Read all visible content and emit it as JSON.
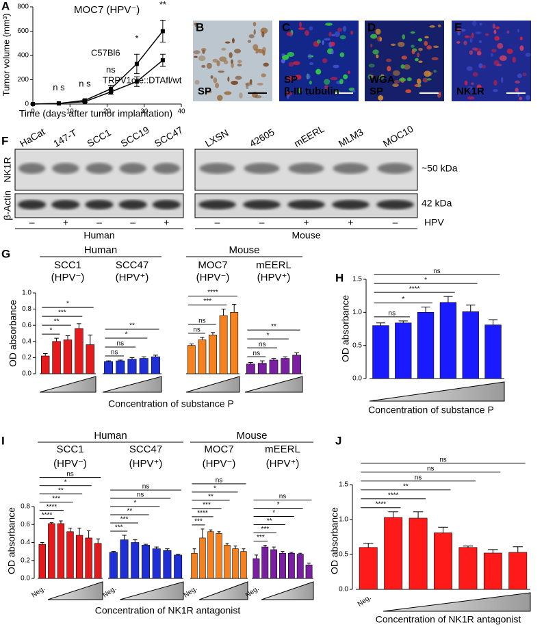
{
  "chart_data": [
    {
      "type": "line",
      "panel": "A",
      "title": "MOC7 (HPV⁻)",
      "x_label": "Time (days after tumor implantation)",
      "y_label": "Tumor volume (mm³)",
      "x": [
        0,
        7,
        14,
        21,
        28,
        35
      ],
      "xlim": [
        0,
        40
      ],
      "xticks": [
        0,
        10,
        20,
        30,
        40
      ],
      "ylim": [
        0,
        800
      ],
      "yticks": [
        0,
        200,
        400,
        600,
        800
      ],
      "series": [
        {
          "name": "C57Bl6",
          "color": "#000000",
          "values": [
            0,
            5,
            30,
            125,
            330,
            600
          ],
          "errors": [
            0,
            3,
            8,
            30,
            80,
            90
          ]
        },
        {
          "name": "TRPV1cre::DTAfl/wt",
          "color": "#000000",
          "values": [
            0,
            5,
            20,
            100,
            185,
            360
          ],
          "errors": [
            0,
            3,
            6,
            20,
            40,
            50
          ]
        }
      ],
      "significance": [
        null,
        "n s",
        "n s",
        "ns",
        "*",
        "**"
      ]
    },
    {
      "type": "bar",
      "panel": "G",
      "x_label": "Concentration of substance P",
      "y_label": "OD absorbance",
      "group_labels": [
        "Human",
        "Mouse"
      ],
      "ylim": [
        0,
        1
      ],
      "yticks": [
        {
          "value": 0,
          "label": "0.0"
        },
        0.2,
        0.4,
        0.6,
        0.8,
        {
          "value": 1,
          "label": "1.0"
        }
      ],
      "series": [
        {
          "name": "SCC1",
          "subtitle": "(HPV⁻)",
          "color": "#e41a1c",
          "values": [
            0.22,
            0.4,
            0.42,
            0.56,
            0.36
          ],
          "errors": [
            0.03,
            0.04,
            0.05,
            0.06,
            0.12
          ],
          "significance": [
            null,
            "*",
            "**",
            "***",
            "*"
          ]
        },
        {
          "name": "SCC47",
          "subtitle": "(HPV⁺)",
          "color": "#1f2fd6",
          "values": [
            0.15,
            0.16,
            0.18,
            0.19,
            0.21
          ],
          "errors": [
            0.01,
            0.01,
            0.02,
            0.02,
            0.02
          ],
          "significance": [
            null,
            "ns",
            "ns",
            "*",
            "**"
          ]
        },
        {
          "name": "MOC7",
          "subtitle": "(HPV⁻)",
          "color": "#f5821f",
          "values": [
            0.35,
            0.42,
            0.48,
            0.72,
            0.76
          ],
          "errors": [
            0.02,
            0.03,
            0.03,
            0.08,
            0.1
          ],
          "significance": [
            null,
            "ns",
            "ns",
            "***",
            "****"
          ]
        },
        {
          "name": "mEERL",
          "subtitle": "(HPV⁺)",
          "color": "#7b1fa2",
          "values": [
            0.12,
            0.13,
            0.17,
            0.19,
            0.23
          ],
          "errors": [
            0.02,
            0.03,
            0.02,
            0.02,
            0.03
          ],
          "significance": [
            null,
            "ns",
            "ns",
            "*",
            "**"
          ]
        }
      ]
    },
    {
      "type": "bar",
      "panel": "H",
      "x_label": "Concentration of substance P",
      "y_label": "OD absorbance",
      "ylim": [
        0,
        1.5
      ],
      "yticks": [
        {
          "value": 0,
          "label": "0.0"
        },
        0.5,
        {
          "value": 1,
          "label": "1.0"
        },
        1.5
      ],
      "series": [
        {
          "color": "#1a1aff",
          "values": [
            0.8,
            0.84,
            1.0,
            1.15,
            1.01,
            0.81
          ],
          "errors": [
            0.04,
            0.03,
            0.08,
            0.09,
            0.1,
            0.08
          ],
          "significance": [
            null,
            "ns",
            "*",
            "****",
            "*",
            "ns"
          ]
        }
      ]
    },
    {
      "type": "bar",
      "panel": "I",
      "x_label": "Concentration of NK1R antagonist",
      "y_label": "OD absorbance",
      "group_labels": [
        "Human",
        "Mouse"
      ],
      "categories": [
        "Neg.",
        null,
        null,
        null,
        null,
        null,
        null
      ],
      "ylim": [
        0,
        0.8
      ],
      "yticks": [
        {
          "value": 0,
          "label": "0.0"
        },
        0.2,
        0.4,
        0.6,
        0.8
      ],
      "series": [
        {
          "name": "SCC1",
          "subtitle": "(HPV⁻)",
          "color": "#e41a1c",
          "values": [
            0.38,
            0.61,
            0.61,
            0.52,
            0.48,
            0.45,
            0.39
          ],
          "errors": [
            0.02,
            0.01,
            0.03,
            0.04,
            0.08,
            0.08,
            0.05
          ],
          "significance": [
            null,
            "****",
            "****",
            "***",
            "**",
            "*",
            "ns"
          ]
        },
        {
          "name": "SCC47",
          "subtitle": "(HPV⁺)",
          "color": "#1f2fd6",
          "values": [
            0.29,
            0.43,
            0.4,
            0.37,
            0.33,
            0.31,
            0.26
          ],
          "errors": [
            0.01,
            0.05,
            0.03,
            0.01,
            0.02,
            0.02,
            0.01
          ],
          "significance": [
            null,
            "***",
            "***",
            "**",
            "*",
            "ns",
            "ns"
          ]
        },
        {
          "name": "MOC7",
          "subtitle": "(HPV⁻)",
          "color": "#f5821f",
          "values": [
            0.28,
            0.45,
            0.52,
            0.5,
            0.37,
            0.33,
            0.3
          ],
          "errors": [
            0.05,
            0.1,
            0.02,
            0.02,
            0.02,
            0.03,
            0.03
          ],
          "significance": [
            null,
            "***",
            "****",
            "***",
            "**",
            "*",
            "ns"
          ]
        },
        {
          "name": "mEERL",
          "subtitle": "(HPV⁺)",
          "color": "#7b1fa2",
          "values": [
            0.22,
            0.35,
            0.32,
            0.28,
            0.28,
            0.27,
            0.15
          ],
          "errors": [
            0.04,
            0.02,
            0.03,
            0.02,
            0.01,
            0.01,
            0.02
          ],
          "significance": [
            null,
            "***",
            "***",
            "**",
            "*",
            "*",
            "ns"
          ]
        }
      ]
    },
    {
      "type": "bar",
      "panel": "J",
      "x_label": "Concentration of NK1R antagonist",
      "y_label": "OD absorbance",
      "categories": [
        "Neg.",
        null,
        null,
        null,
        null,
        null,
        null
      ],
      "ylim": [
        0,
        1.5
      ],
      "yticks": [
        {
          "value": 0,
          "label": "0.0"
        },
        0.5,
        {
          "value": 1,
          "label": "1.0"
        },
        1.5
      ],
      "series": [
        {
          "color": "#ff1a1a",
          "values": [
            0.6,
            1.03,
            1.02,
            0.81,
            0.6,
            0.52,
            0.53
          ],
          "errors": [
            0.06,
            0.08,
            0.09,
            0.08,
            0.02,
            0.05,
            0.08
          ],
          "significance": [
            null,
            "****",
            "****",
            "**",
            "ns",
            "ns",
            "ns"
          ]
        }
      ]
    }
  ],
  "micrographs": [
    {
      "panel": "B",
      "labels": [
        {
          "text": "SP",
          "color": "#8a5a2b"
        }
      ]
    },
    {
      "panel": "C",
      "labels": [
        {
          "text": "SP",
          "color": "#ff2a2a"
        },
        {
          "text": "β-III tubulin",
          "color": "#2bd62b"
        }
      ]
    },
    {
      "panel": "D",
      "labels": [
        {
          "text": "WGA",
          "color": "#ff2a2a"
        },
        {
          "text": "SP",
          "color": "#2bd62b"
        }
      ]
    },
    {
      "panel": "E",
      "labels": [
        {
          "text": "NK1R",
          "color": "#ff2a2a"
        }
      ]
    }
  ],
  "western_blot": {
    "panel": "F",
    "rows": [
      "NK1R",
      "β-Actin"
    ],
    "sizes": [
      "~50 kDa",
      "42 kDa"
    ],
    "hpv_label": "HPV",
    "blots": [
      {
        "group": "Human",
        "lanes": [
          "HaCat",
          "147-T",
          "SCC1",
          "SCC19",
          "SCC47"
        ],
        "hpv": [
          "–",
          "+",
          "–",
          "–",
          "+"
        ]
      },
      {
        "group": "Mouse",
        "lanes": [
          "LXSN",
          "42605",
          "mEERL",
          "MLM3",
          "MOC10"
        ],
        "hpv": [
          "–",
          "–",
          "+",
          "+",
          "–"
        ]
      }
    ]
  }
}
